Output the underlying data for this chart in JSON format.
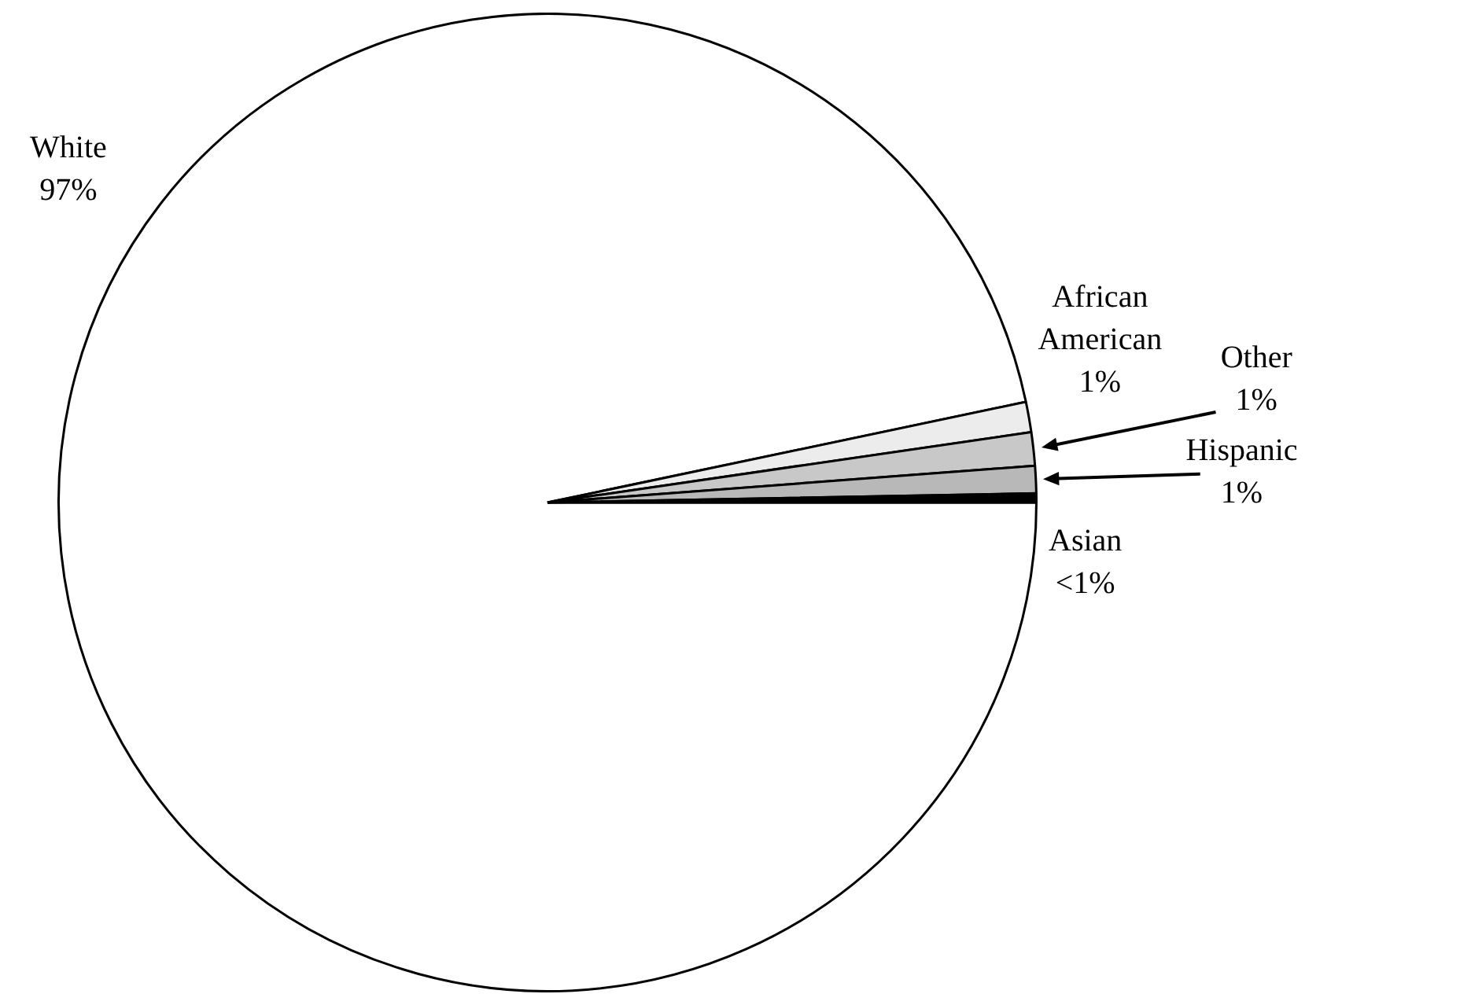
{
  "chart_data": {
    "type": "pie",
    "categories": [
      "White",
      "African American",
      "Other",
      "Hispanic",
      "Asian"
    ],
    "values": [
      96.7,
      1,
      1.1,
      0.9,
      0.3
    ],
    "colors": [
      "#ffffff",
      "#ececec",
      "#c8c8c8",
      "#b8b8b8",
      "#000000"
    ],
    "value_labels": [
      "97%",
      "1%",
      "1%",
      "1%",
      "<1%"
    ],
    "legend": false
  }
}
